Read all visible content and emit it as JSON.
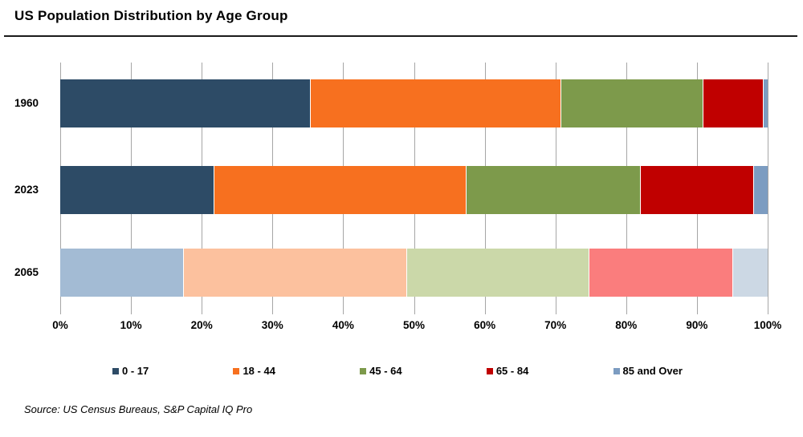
{
  "title": "US Population Distribution by Age Group",
  "source": "Source: US Census Bureaus, S&P Capital IQ Pro",
  "chart_data": {
    "type": "bar",
    "orientation": "horizontal",
    "stacked": true,
    "title": "US Population Distribution by Age Group",
    "categories": [
      "1960",
      "2023",
      "2065"
    ],
    "series": [
      {
        "name": "0 - 17",
        "values": [
          35.5,
          21.8,
          17.4
        ],
        "colors": [
          "#2D4B66",
          "#2D4B66",
          "#A3BBD4"
        ],
        "legend_color": "#2D4B66"
      },
      {
        "name": "18 - 44",
        "values": [
          35.4,
          35.7,
          31.6
        ],
        "colors": [
          "#F7701F",
          "#F7701F",
          "#FCC19E"
        ],
        "legend_color": "#F7701F"
      },
      {
        "name": "45 - 64",
        "values": [
          20.1,
          24.6,
          25.8
        ],
        "colors": [
          "#7D9A4B",
          "#7D9A4B",
          "#CBD8A9"
        ],
        "legend_color": "#7D9A4B"
      },
      {
        "name": "65 - 84",
        "values": [
          8.4,
          16.0,
          20.3
        ],
        "colors": [
          "#C00000",
          "#C00000",
          "#FA7D7D"
        ],
        "legend_color": "#C00000"
      },
      {
        "name": "85 and Over",
        "values": [
          0.6,
          1.9,
          4.9
        ],
        "colors": [
          "#7C9CC1",
          "#7C9CC1",
          "#CCD8E4"
        ],
        "legend_color": "#7C9CC1"
      }
    ],
    "x_ticks": [
      "0%",
      "10%",
      "20%",
      "30%",
      "40%",
      "50%",
      "60%",
      "70%",
      "80%",
      "90%",
      "100%"
    ],
    "xlim": [
      0,
      100
    ],
    "grid": true,
    "gridline_color": "#A6A6A6",
    "legend_position": "bottom"
  }
}
